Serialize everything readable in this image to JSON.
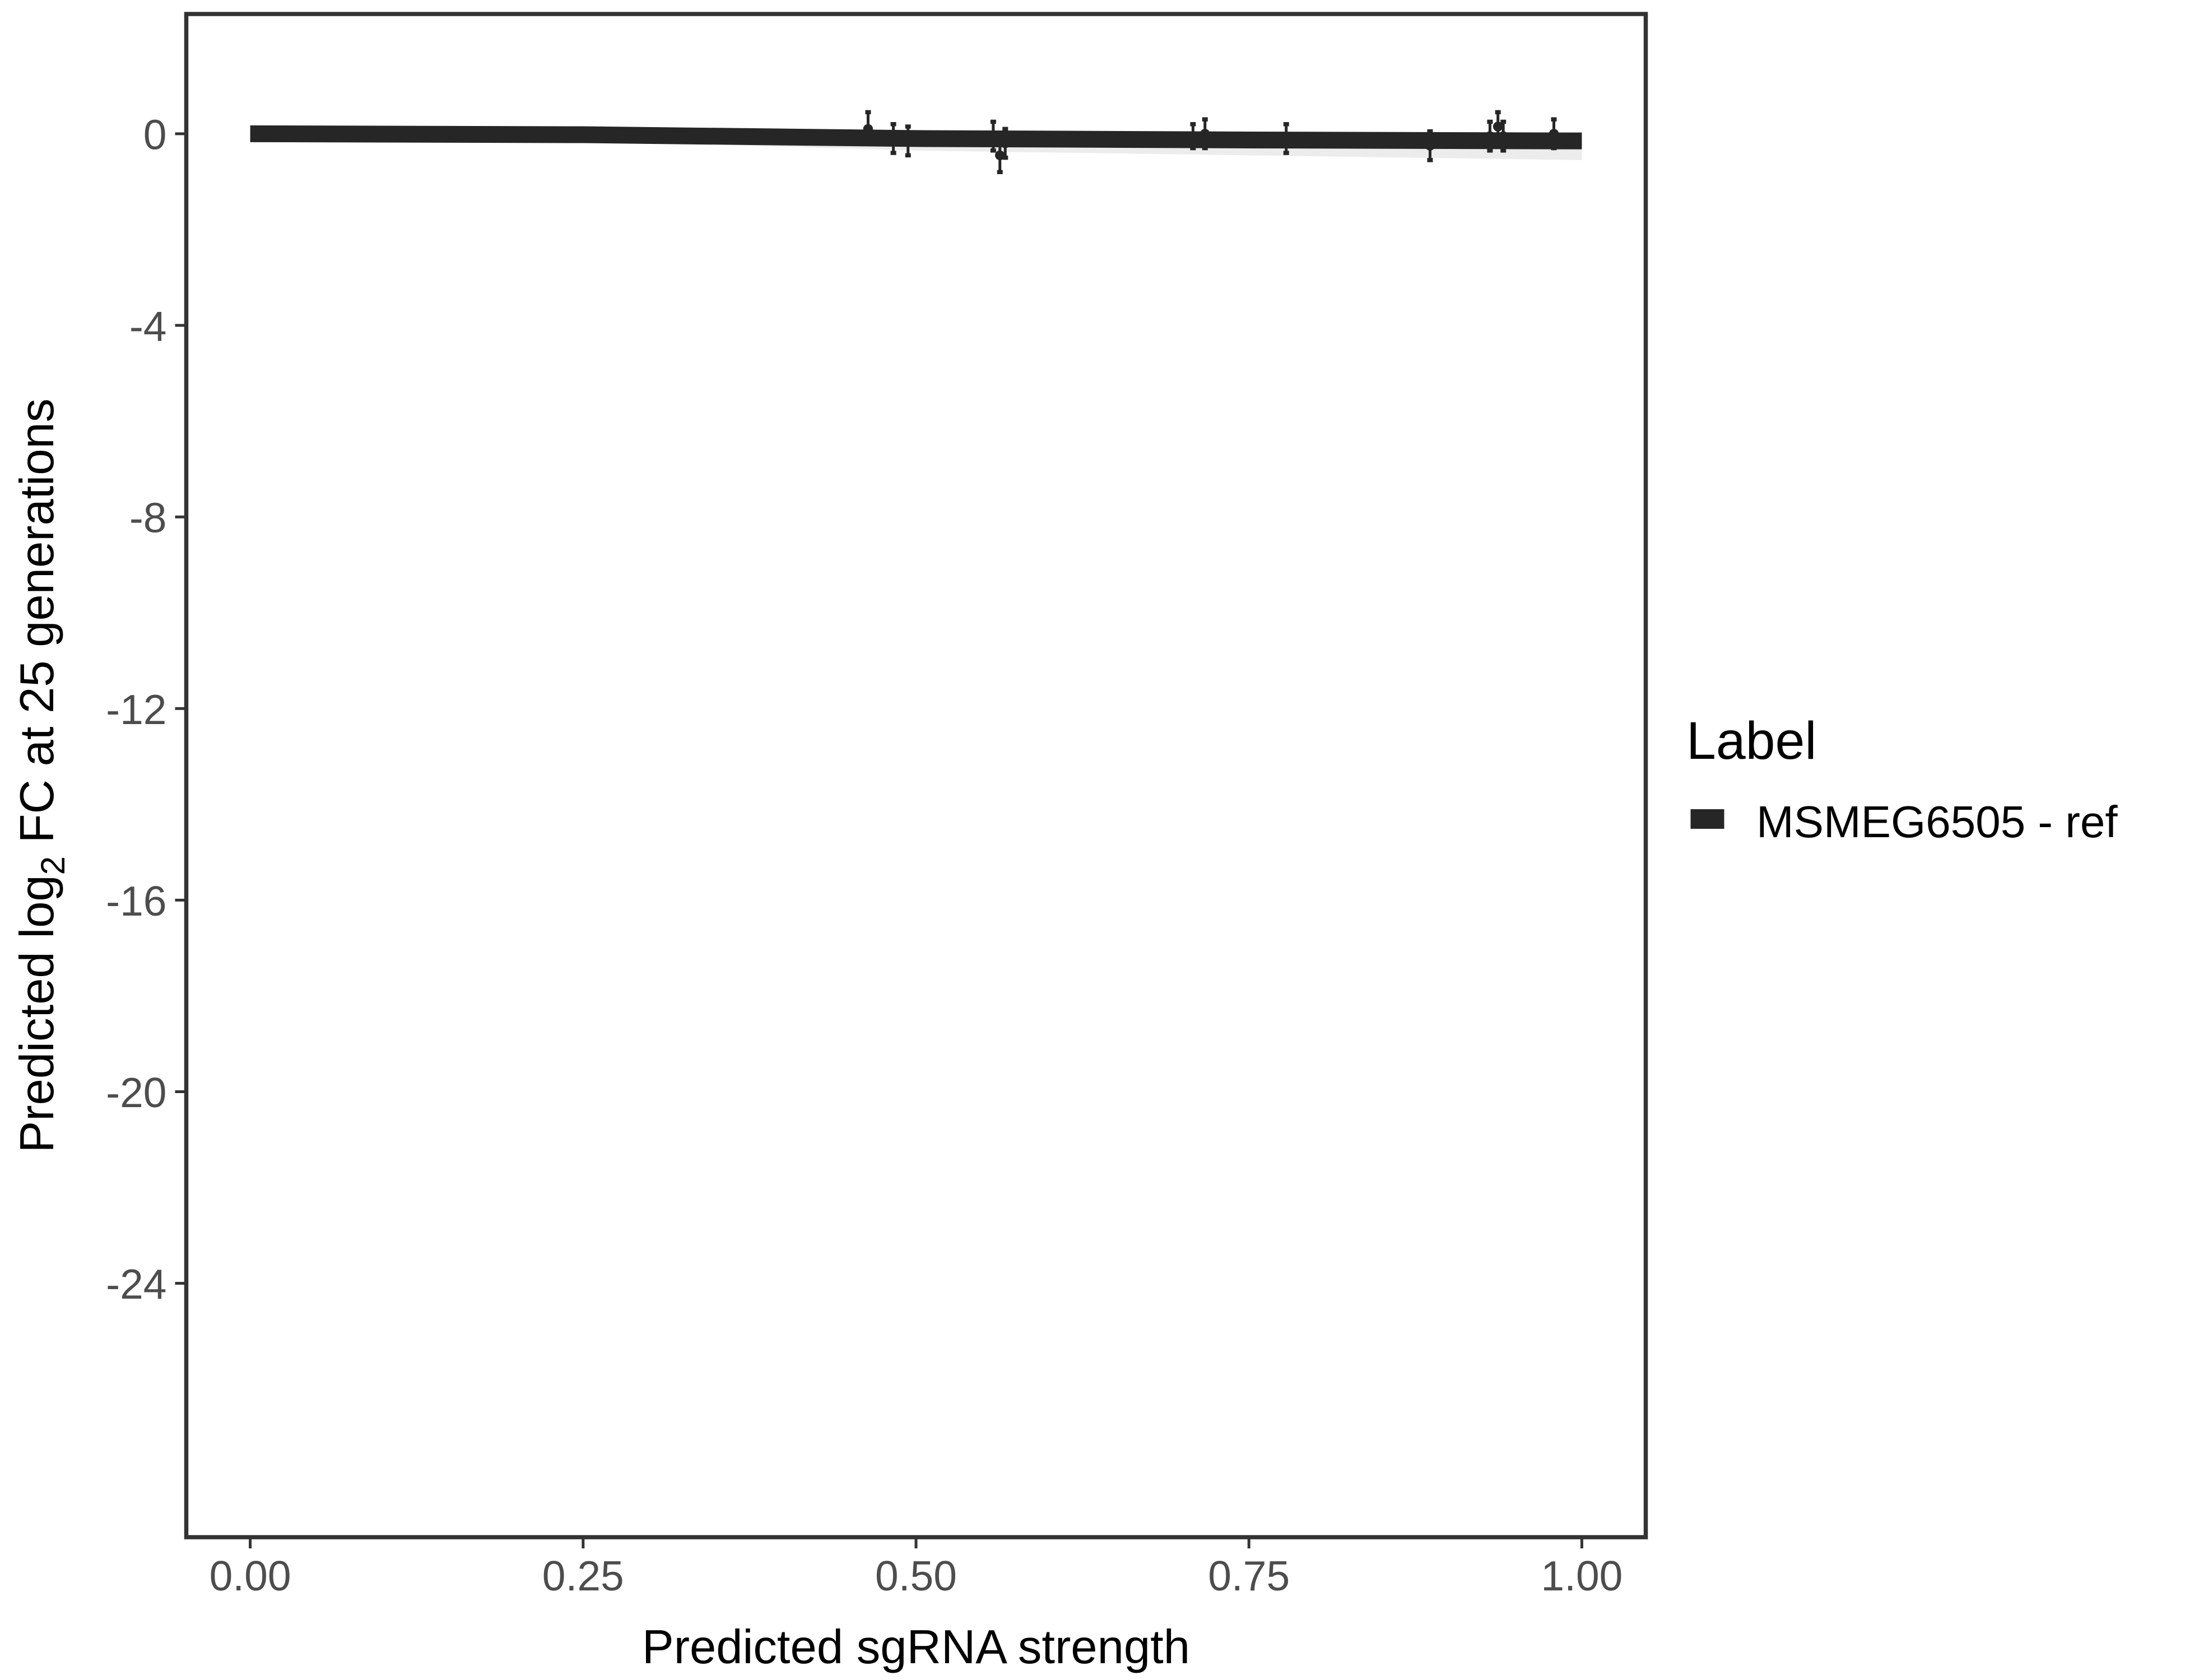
{
  "chart_data": {
    "type": "line",
    "title": "",
    "xlabel": "Predicted sgRNA strength",
    "ylabel_prefix": "Predicted  log",
    "ylabel_sub": "2",
    "ylabel_suffix": " FC at 25 generations",
    "xlim": [
      -0.048,
      1.048
    ],
    "ylim": [
      -29.3,
      2.5
    ],
    "xticks": [
      0,
      0.25,
      0.5,
      0.75,
      1
    ],
    "xtick_labels": [
      "0.00",
      "0.25",
      "0.50",
      "0.75",
      "1.00"
    ],
    "yticks": [
      0,
      -4,
      -8,
      -12,
      -16,
      -20,
      -24
    ],
    "ytick_labels": [
      "0",
      "-4",
      "-8",
      "-12",
      "-16",
      "-20",
      "-24"
    ],
    "grid": false,
    "legend": {
      "title": "Label",
      "position": "right",
      "entries": [
        "MSMEG6505 - ref"
      ]
    },
    "colors": {
      "series": "#262626",
      "ribbon": "#d9d9d9",
      "frame": "#333333"
    },
    "fit_line": {
      "x": [
        0,
        0.25,
        0.5,
        0.75,
        1
      ],
      "y": [
        0,
        -0.02,
        -0.1,
        -0.13,
        -0.15
      ],
      "ribbon_low": [
        -0.1,
        -0.15,
        -0.35,
        -0.45,
        -0.55
      ]
    },
    "points": [
      {
        "x": 0.464,
        "y": 0.1,
        "lo": -0.1,
        "hi": 0.45
      },
      {
        "x": 0.483,
        "y": -0.1,
        "lo": -0.4,
        "hi": 0.2
      },
      {
        "x": 0.494,
        "y": -0.15,
        "lo": -0.45,
        "hi": 0.15
      },
      {
        "x": 0.558,
        "y": -0.05,
        "lo": -0.35,
        "hi": 0.25
      },
      {
        "x": 0.563,
        "y": -0.45,
        "lo": -0.8,
        "hi": -0.1
      },
      {
        "x": 0.567,
        "y": -0.2,
        "lo": -0.5,
        "hi": 0.1
      },
      {
        "x": 0.708,
        "y": -0.05,
        "lo": -0.3,
        "hi": 0.2
      },
      {
        "x": 0.717,
        "y": 0.0,
        "lo": -0.3,
        "hi": 0.3
      },
      {
        "x": 0.778,
        "y": -0.1,
        "lo": -0.4,
        "hi": 0.2
      },
      {
        "x": 0.886,
        "y": -0.25,
        "lo": -0.55,
        "hi": 0.05
      },
      {
        "x": 0.931,
        "y": -0.05,
        "lo": -0.35,
        "hi": 0.25
      },
      {
        "x": 0.937,
        "y": 0.15,
        "lo": -0.15,
        "hi": 0.45
      },
      {
        "x": 0.941,
        "y": -0.05,
        "lo": -0.35,
        "hi": 0.25
      },
      {
        "x": 0.979,
        "y": 0.0,
        "lo": -0.3,
        "hi": 0.3
      }
    ]
  }
}
